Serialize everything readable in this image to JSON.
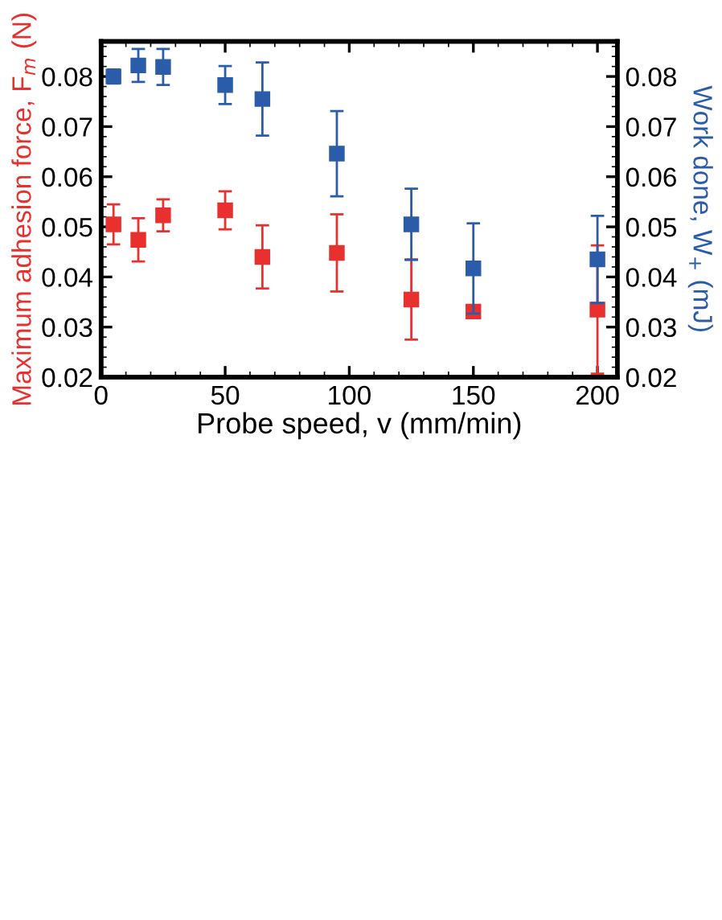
{
  "chart_data": {
    "type": "scatter",
    "xlabel": "Probe speed, v (mm/min)",
    "ylabel": "Maximum adhesion force, F$_{m}$ (N)",
    "y2label": "Work done, W$_{+}$ (mJ)",
    "x": [
      5,
      15,
      25,
      50,
      65,
      95,
      125,
      150,
      200
    ],
    "series": [
      {
        "color": "#e8312f",
        "values": [
          0.0505,
          0.0474,
          0.0523,
          0.0533,
          0.044,
          0.0448,
          0.0355,
          0.0331,
          0.0335
        ],
        "errors": [
          0.004,
          0.0043,
          0.0032,
          0.0038,
          0.0063,
          0.0077,
          0.008,
          0.0005,
          0.0128
        ]
      },
      {
        "color": "#2a5caa",
        "axis": "y2",
        "values": [
          0.08,
          0.0822,
          0.0819,
          0.0783,
          0.0755,
          0.0646,
          0.0505,
          0.0417,
          0.0435
        ],
        "errors": [
          0.0014,
          0.0033,
          0.0036,
          0.0038,
          0.0073,
          0.0085,
          0.0071,
          0.009,
          0.0087
        ]
      }
    ],
    "marker": "square",
    "xlim": [
      0,
      208
    ],
    "xticks": [
      0,
      50,
      100,
      150,
      200
    ],
    "ylim": [
      0.02,
      0.087
    ],
    "yticks": [
      0.02,
      0.03,
      0.04,
      0.05,
      0.06,
      0.07,
      0.08
    ],
    "y2lim": [
      0.02,
      0.087
    ],
    "y2ticks": [
      0.02,
      0.03,
      0.04,
      0.05,
      0.06,
      0.07,
      0.08
    ],
    "grid": false,
    "legend": false
  }
}
